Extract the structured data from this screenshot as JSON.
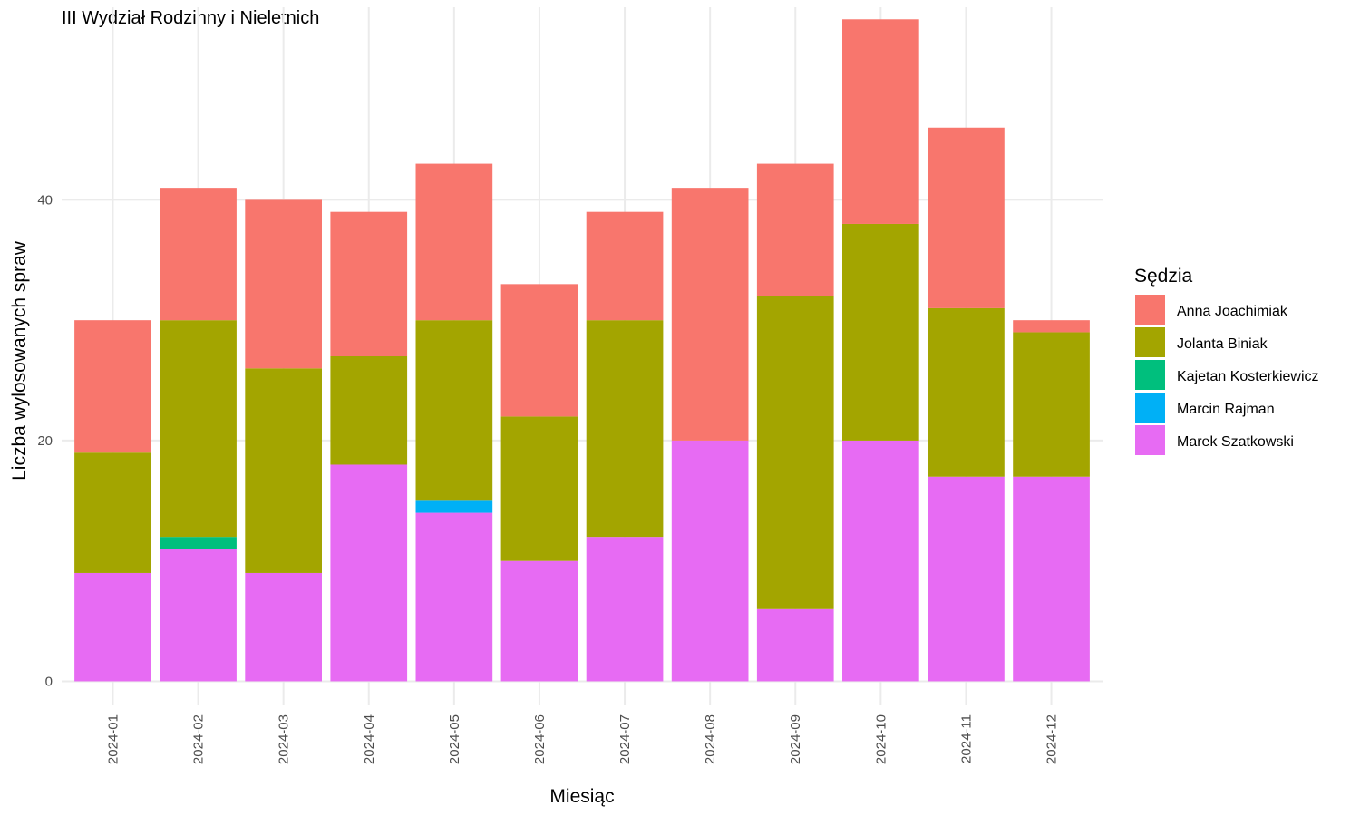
{
  "chart_data": {
    "type": "bar",
    "stacked": true,
    "title": "III Wydział Rodzinny i Nieletnich",
    "xlabel": "Miesiąc",
    "ylabel": "Liczba wylosowanych spraw",
    "ylim": [
      -2,
      56
    ],
    "yticks": [
      0,
      20,
      40
    ],
    "grid": true,
    "legend": {
      "title": "Sędzia",
      "position": "right"
    },
    "categories": [
      "2024-01",
      "2024-02",
      "2024-03",
      "2024-04",
      "2024-05",
      "2024-06",
      "2024-07",
      "2024-08",
      "2024-09",
      "2024-10",
      "2024-11",
      "2024-12"
    ],
    "series": [
      {
        "name": "Marek Szatkowski",
        "color": "#E76BF3",
        "values": [
          9,
          11,
          9,
          18,
          14,
          10,
          12,
          20,
          6,
          20,
          17,
          17
        ]
      },
      {
        "name": "Marcin Rajman",
        "color": "#00B0F6",
        "values": [
          0,
          0,
          0,
          0,
          1,
          0,
          0,
          0,
          0,
          0,
          0,
          0
        ]
      },
      {
        "name": "Kajetan Kosterkiewicz",
        "color": "#00BF7D",
        "values": [
          0,
          1,
          0,
          0,
          0,
          0,
          0,
          0,
          0,
          0,
          0,
          0
        ]
      },
      {
        "name": "Jolanta Biniak",
        "color": "#A3A500",
        "values": [
          10,
          18,
          17,
          9,
          15,
          12,
          18,
          0,
          26,
          18,
          14,
          12
        ]
      },
      {
        "name": "Anna Joachimiak",
        "color": "#F8766D",
        "values": [
          11,
          11,
          14,
          12,
          13,
          11,
          9,
          21,
          11,
          17,
          15,
          1
        ]
      }
    ],
    "legend_order": [
      "Anna Joachimiak",
      "Jolanta Biniak",
      "Kajetan Kosterkiewicz",
      "Marcin Rajman",
      "Marek Szatkowski"
    ]
  }
}
